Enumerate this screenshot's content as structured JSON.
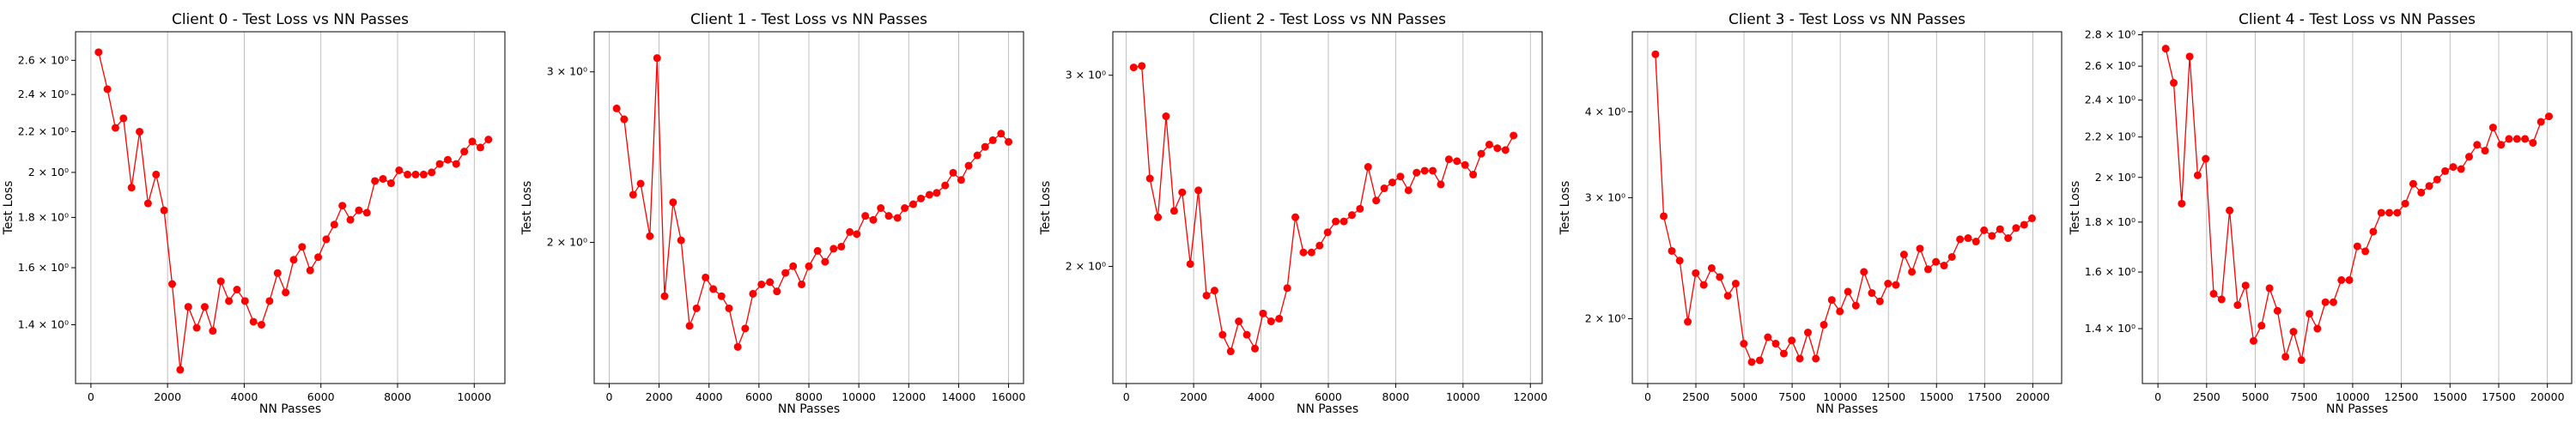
{
  "figure": {
    "background": "#ffffff",
    "series_color": "#ff0000"
  },
  "chart_data": [
    {
      "type": "line",
      "title": "Client 0 - Test Loss vs NN Passes",
      "xlabel": "NN Passes",
      "ylabel": "Test Loss",
      "y_scale": "log",
      "grid": "vertical",
      "xlim": [
        -400,
        10800
      ],
      "ylim": [
        1.22,
        2.78
      ],
      "x_ticks": [
        0,
        2000,
        4000,
        6000,
        8000,
        10000
      ],
      "x_tick_labels": [
        "0",
        "2000",
        "4000",
        "6000",
        "8000",
        "10000"
      ],
      "y_ticks": [
        1.4,
        1.6,
        1.8,
        2.0,
        2.2,
        2.4,
        2.6
      ],
      "y_tick_labels": [
        "1.4 × 10⁰",
        "1.6 × 10⁰",
        "1.8 × 10⁰",
        "2 × 10⁰",
        "2.2 × 10⁰",
        "2.4 × 10⁰",
        "2.6 × 10⁰"
      ],
      "x": [
        200,
        430,
        640,
        850,
        1060,
        1270,
        1490,
        1700,
        1910,
        2120,
        2330,
        2540,
        2760,
        2970,
        3180,
        3390,
        3600,
        3810,
        4020,
        4240,
        4450,
        4660,
        4870,
        5080,
        5290,
        5510,
        5720,
        5930,
        6140,
        6350,
        6560,
        6770,
        6990,
        7200,
        7410,
        7620,
        7830,
        8040,
        8260,
        8470,
        8680,
        8890,
        9100,
        9310,
        9530,
        9740,
        9950,
        10160,
        10370
      ],
      "values": [
        2.65,
        2.43,
        2.22,
        2.27,
        1.93,
        2.2,
        1.86,
        1.99,
        1.83,
        1.54,
        1.26,
        1.46,
        1.39,
        1.46,
        1.38,
        1.55,
        1.48,
        1.52,
        1.48,
        1.41,
        1.4,
        1.48,
        1.58,
        1.51,
        1.63,
        1.68,
        1.59,
        1.64,
        1.71,
        1.77,
        1.85,
        1.79,
        1.83,
        1.82,
        1.96,
        1.97,
        1.95,
        2.01,
        1.99,
        1.99,
        1.99,
        2.0,
        2.04,
        2.06,
        2.04,
        2.1,
        2.15,
        2.12,
        2.16
      ]
    },
    {
      "type": "line",
      "title": "Client 1 - Test Loss vs NN Passes",
      "xlabel": "NN Passes",
      "ylabel": "Test Loss",
      "y_scale": "log",
      "grid": "vertical",
      "xlim": [
        -600,
        16600
      ],
      "ylim": [
        1.43,
        3.3
      ],
      "x_ticks": [
        0,
        2000,
        4000,
        6000,
        8000,
        10000,
        12000,
        14000,
        16000
      ],
      "x_tick_labels": [
        "0",
        "2000",
        "4000",
        "6000",
        "8000",
        "10000",
        "12000",
        "14000",
        "16000"
      ],
      "y_ticks": [
        2.0,
        3.0
      ],
      "y_tick_labels": [
        "2 × 10⁰",
        "3 × 10⁰"
      ],
      "x": [
        300,
        600,
        960,
        1260,
        1630,
        1920,
        2220,
        2560,
        2880,
        3220,
        3500,
        3860,
        4170,
        4500,
        4800,
        5150,
        5450,
        5760,
        6100,
        6440,
        6720,
        7060,
        7370,
        7710,
        8000,
        8350,
        8650,
        8990,
        9300,
        9640,
        9920,
        10260,
        10580,
        10880,
        11200,
        11550,
        11840,
        12180,
        12490,
        12830,
        13120,
        13460,
        13780,
        14100,
        14400,
        14750,
        15060,
        15370,
        15700,
        16000
      ],
      "values": [
        2.75,
        2.68,
        2.24,
        2.3,
        2.03,
        3.1,
        1.76,
        2.2,
        2.01,
        1.64,
        1.71,
        1.84,
        1.79,
        1.76,
        1.71,
        1.56,
        1.63,
        1.77,
        1.81,
        1.82,
        1.78,
        1.86,
        1.89,
        1.81,
        1.89,
        1.96,
        1.91,
        1.97,
        1.98,
        2.05,
        2.04,
        2.13,
        2.11,
        2.17,
        2.13,
        2.12,
        2.17,
        2.19,
        2.22,
        2.24,
        2.25,
        2.29,
        2.36,
        2.32,
        2.4,
        2.46,
        2.51,
        2.55,
        2.59,
        2.54
      ]
    },
    {
      "type": "line",
      "title": "Client 2 - Test Loss vs NN Passes",
      "xlabel": "NN Passes",
      "ylabel": "Test Loss",
      "y_scale": "log",
      "grid": "vertical",
      "xlim": [
        -400,
        12350
      ],
      "ylim": [
        1.56,
        3.29
      ],
      "x_ticks": [
        0,
        2000,
        4000,
        6000,
        8000,
        10000,
        12000
      ],
      "x_tick_labels": [
        "0",
        "2000",
        "4000",
        "6000",
        "8000",
        "10000",
        "12000"
      ],
      "y_ticks": [
        2.0,
        3.0
      ],
      "y_tick_labels": [
        "2 × 10⁰",
        "3 × 10⁰"
      ],
      "x": [
        220,
        460,
        700,
        940,
        1180,
        1420,
        1660,
        1900,
        2140,
        2380,
        2620,
        2860,
        3100,
        3340,
        3580,
        3820,
        4060,
        4300,
        4540,
        4780,
        5020,
        5260,
        5500,
        5740,
        5980,
        6220,
        6460,
        6700,
        6940,
        7180,
        7420,
        7660,
        7900,
        8140,
        8380,
        8620,
        8860,
        9100,
        9340,
        9580,
        9820,
        10060,
        10300,
        10540,
        10780,
        11020,
        11260,
        11500
      ],
      "values": [
        3.05,
        3.06,
        2.41,
        2.22,
        2.75,
        2.25,
        2.34,
        2.01,
        2.35,
        1.88,
        1.9,
        1.73,
        1.67,
        1.78,
        1.73,
        1.68,
        1.81,
        1.78,
        1.79,
        1.91,
        2.22,
        2.06,
        2.06,
        2.09,
        2.15,
        2.2,
        2.2,
        2.23,
        2.26,
        2.47,
        2.3,
        2.36,
        2.39,
        2.42,
        2.35,
        2.44,
        2.45,
        2.45,
        2.38,
        2.51,
        2.5,
        2.48,
        2.43,
        2.54,
        2.59,
        2.57,
        2.56,
        2.64
      ]
    },
    {
      "type": "line",
      "title": "Client 3 - Test Loss vs NN Passes",
      "xlabel": "NN Passes",
      "ylabel": "Test Loss",
      "y_scale": "log",
      "grid": "vertical",
      "xlim": [
        -800,
        21500
      ],
      "ylim": [
        1.61,
        5.23
      ],
      "x_ticks": [
        0,
        2500,
        5000,
        7500,
        10000,
        12500,
        15000,
        17500,
        20000
      ],
      "x_tick_labels": [
        "0",
        "2500",
        "5000",
        "7500",
        "10000",
        "12500",
        "15000",
        "17500",
        "20000"
      ],
      "y_ticks": [
        2.0,
        3.0,
        4.0
      ],
      "y_tick_labels": [
        "2 × 10⁰",
        "3 × 10⁰",
        "4 × 10⁰"
      ],
      "x": [
        400,
        830,
        1250,
        1660,
        2080,
        2490,
        2910,
        3320,
        3740,
        4160,
        4570,
        4990,
        5400,
        5820,
        6240,
        6650,
        7070,
        7480,
        7900,
        8320,
        8730,
        9150,
        9560,
        9980,
        10400,
        10810,
        11230,
        11640,
        12060,
        12480,
        12890,
        13310,
        13720,
        14140,
        14560,
        14970,
        15390,
        15800,
        16220,
        16640,
        17050,
        17470,
        17880,
        18300,
        18720,
        19130,
        19550,
        19960
      ],
      "values": [
        4.85,
        2.82,
        2.51,
        2.43,
        1.98,
        2.33,
        2.24,
        2.37,
        2.3,
        2.16,
        2.25,
        1.84,
        1.73,
        1.74,
        1.88,
        1.84,
        1.78,
        1.86,
        1.75,
        1.91,
        1.75,
        1.96,
        2.13,
        2.05,
        2.19,
        2.09,
        2.34,
        2.18,
        2.12,
        2.25,
        2.24,
        2.48,
        2.34,
        2.53,
        2.36,
        2.42,
        2.39,
        2.46,
        2.61,
        2.62,
        2.59,
        2.69,
        2.64,
        2.7,
        2.62,
        2.71,
        2.74,
        2.8
      ]
    },
    {
      "type": "line",
      "title": "Client 4 - Test Loss vs NN Passes",
      "xlabel": "NN Passes",
      "ylabel": "Test Loss",
      "y_scale": "log",
      "grid": "vertical",
      "xlim": [
        -800,
        21250
      ],
      "ylim": [
        1.23,
        2.82
      ],
      "x_ticks": [
        0,
        2500,
        5000,
        7500,
        10000,
        12500,
        15000,
        17500,
        20000
      ],
      "x_tick_labels": [
        "0",
        "2500",
        "5000",
        "7500",
        "10000",
        "12500",
        "15000",
        "17500",
        "20000"
      ],
      "y_ticks": [
        1.4,
        1.6,
        1.8,
        2.0,
        2.2,
        2.4,
        2.6,
        2.8
      ],
      "y_tick_labels": [
        "1.4 × 10⁰",
        "1.6 × 10⁰",
        "1.8 × 10⁰",
        "2 × 10⁰",
        "2.2 × 10⁰",
        "2.4 × 10⁰",
        "2.6 × 10⁰",
        "2.8 × 10⁰"
      ],
      "x": [
        400,
        810,
        1220,
        1630,
        2040,
        2450,
        2860,
        3270,
        3680,
        4090,
        4500,
        4910,
        5320,
        5730,
        6140,
        6550,
        6960,
        7370,
        7780,
        8190,
        8600,
        9010,
        9420,
        9830,
        10240,
        10650,
        11060,
        11470,
        11880,
        12290,
        12700,
        13110,
        13520,
        13930,
        14340,
        14750,
        15160,
        15570,
        15980,
        16390,
        16800,
        17210,
        17620,
        18030,
        18440,
        18850,
        19260,
        19670,
        20080
      ],
      "values": [
        2.71,
        2.5,
        1.88,
        2.66,
        2.01,
        2.09,
        1.52,
        1.5,
        1.85,
        1.48,
        1.55,
        1.36,
        1.41,
        1.54,
        1.46,
        1.31,
        1.39,
        1.3,
        1.45,
        1.4,
        1.49,
        1.49,
        1.57,
        1.57,
        1.7,
        1.68,
        1.76,
        1.84,
        1.84,
        1.84,
        1.88,
        1.97,
        1.93,
        1.96,
        1.99,
        2.03,
        2.05,
        2.04,
        2.1,
        2.16,
        2.13,
        2.25,
        2.16,
        2.19,
        2.19,
        2.19,
        2.17,
        2.28,
        2.31
      ]
    }
  ]
}
